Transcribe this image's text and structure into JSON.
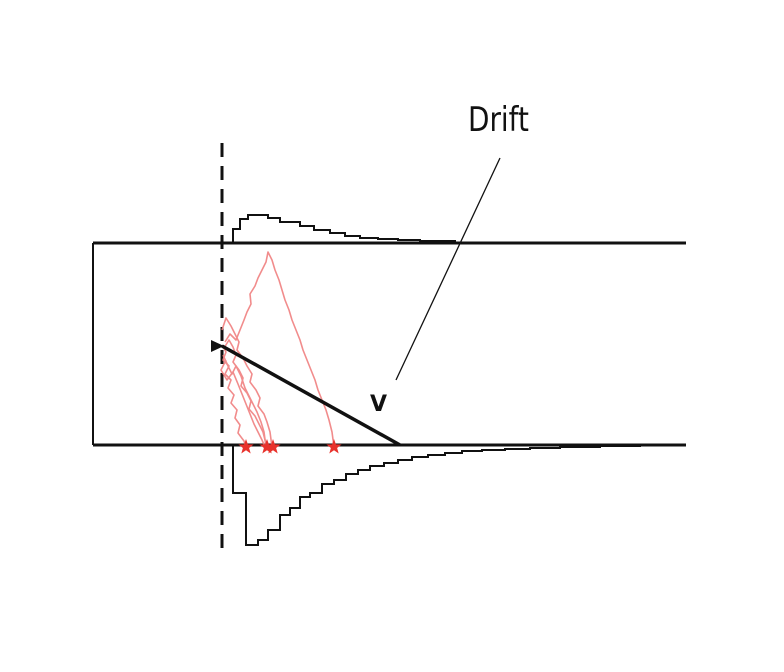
{
  "labels": {
    "drift": "Drift",
    "velocity": "V"
  },
  "colors": {
    "ink": "#111111",
    "trajectory": "#f08080",
    "endpoint": "#e8322c"
  },
  "icons": {
    "endpoint": "red-star-icon",
    "source": "triangle-arrow-icon"
  }
}
